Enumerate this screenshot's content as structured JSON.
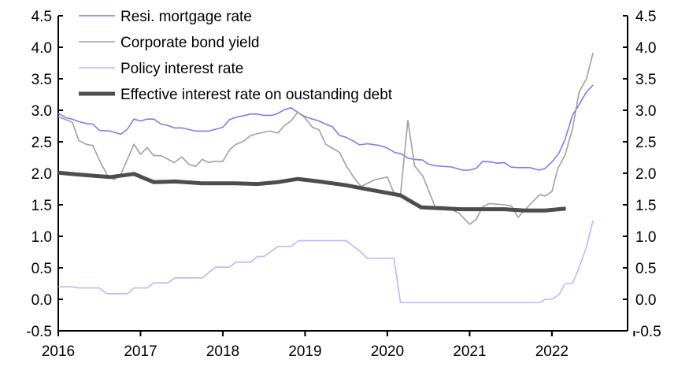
{
  "chart_data": {
    "type": "line",
    "title": "",
    "xlabel": "",
    "ylabel": "",
    "xlim": [
      2016,
      2022.92
    ],
    "ylim": [
      -0.5,
      4.5
    ],
    "y_ticks": [
      "-0.5",
      "0.0",
      "0.5",
      "1.0",
      "1.5",
      "2.0",
      "2.5",
      "3.0",
      "3.5",
      "4.0",
      "4.5"
    ],
    "y_tick_values": [
      -0.5,
      0,
      0.5,
      1,
      1.5,
      2,
      2.5,
      3,
      3.5,
      4,
      4.5
    ],
    "x_ticks": [
      "2016",
      "2017",
      "2018",
      "2019",
      "2020",
      "2021",
      "2022"
    ],
    "x_tick_values": [
      2016,
      2017,
      2018,
      2019,
      2020,
      2021,
      2022
    ],
    "grid": false,
    "legend_position": "top-left",
    "series": [
      {
        "name": "Resi. mortgage rate",
        "color": "#7b7bf5",
        "width": 1.6,
        "x": [
          2016.0,
          2016.1,
          2016.17,
          2016.25,
          2016.34,
          2016.42,
          2016.5,
          2016.63,
          2016.76,
          2016.84,
          2016.92,
          2017.0,
          2017.08,
          2017.16,
          2017.25,
          2017.33,
          2017.41,
          2017.5,
          2017.67,
          2017.83,
          2018.0,
          2018.08,
          2018.16,
          2018.24,
          2018.34,
          2018.42,
          2018.5,
          2018.6,
          2018.67,
          2018.75,
          2018.83,
          2018.91,
          2019.0,
          2019.09,
          2019.17,
          2019.25,
          2019.33,
          2019.42,
          2019.5,
          2019.59,
          2019.66,
          2019.76,
          2019.91,
          2020.0,
          2020.09,
          2020.17,
          2020.25,
          2020.33,
          2020.43,
          2020.49,
          2020.58,
          2020.78,
          2020.91,
          2021.0,
          2021.08,
          2021.16,
          2021.25,
          2021.34,
          2021.42,
          2021.5,
          2021.58,
          2021.73,
          2021.85,
          2021.92,
          2022.0,
          2022.09,
          2022.16,
          2022.25,
          2022.33,
          2022.42,
          2022.5
        ],
        "y": [
          2.95,
          2.88,
          2.86,
          2.82,
          2.79,
          2.78,
          2.68,
          2.67,
          2.62,
          2.7,
          2.86,
          2.83,
          2.86,
          2.86,
          2.78,
          2.76,
          2.72,
          2.72,
          2.67,
          2.67,
          2.73,
          2.85,
          2.89,
          2.91,
          2.94,
          2.94,
          2.92,
          2.92,
          2.95,
          3.01,
          3.04,
          2.97,
          2.9,
          2.86,
          2.83,
          2.78,
          2.74,
          2.6,
          2.57,
          2.51,
          2.45,
          2.47,
          2.44,
          2.4,
          2.33,
          2.31,
          2.24,
          2.22,
          2.21,
          2.15,
          2.12,
          2.1,
          2.05,
          2.05,
          2.08,
          2.19,
          2.18,
          2.16,
          2.17,
          2.1,
          2.09,
          2.09,
          2.05,
          2.08,
          2.18,
          2.33,
          2.54,
          2.92,
          3.09,
          3.29,
          3.4
        ]
      },
      {
        "name": "Corporate bond yield",
        "color": "#a0a0a0",
        "width": 1.6,
        "x": [
          2016.0,
          2016.17,
          2016.25,
          2016.34,
          2016.42,
          2016.5,
          2016.6,
          2016.68,
          2016.76,
          2016.92,
          2017.0,
          2017.08,
          2017.16,
          2017.25,
          2017.41,
          2017.5,
          2017.59,
          2017.67,
          2017.75,
          2017.83,
          2017.9,
          2018.0,
          2018.08,
          2018.16,
          2018.24,
          2018.34,
          2018.42,
          2018.57,
          2018.67,
          2018.75,
          2018.83,
          2018.91,
          2019.0,
          2019.09,
          2019.17,
          2019.25,
          2019.33,
          2019.42,
          2019.5,
          2019.6,
          2019.68,
          2019.85,
          2020.0,
          2020.08,
          2020.16,
          2020.25,
          2020.33,
          2020.43,
          2020.58,
          2020.7,
          2020.87,
          2021.0,
          2021.08,
          2021.16,
          2021.24,
          2021.42,
          2021.51,
          2021.59,
          2021.73,
          2021.85,
          2021.92,
          2022.0,
          2022.07,
          2022.16,
          2022.25,
          2022.33,
          2022.42,
          2022.5
        ],
        "y": [
          2.9,
          2.81,
          2.52,
          2.46,
          2.44,
          2.21,
          1.96,
          1.9,
          1.98,
          2.46,
          2.3,
          2.41,
          2.28,
          2.28,
          2.17,
          2.26,
          2.14,
          2.11,
          2.22,
          2.17,
          2.19,
          2.19,
          2.37,
          2.46,
          2.5,
          2.6,
          2.63,
          2.67,
          2.64,
          2.76,
          2.83,
          2.97,
          2.88,
          2.73,
          2.69,
          2.46,
          2.4,
          2.33,
          2.12,
          1.92,
          1.79,
          1.9,
          1.94,
          1.69,
          1.66,
          2.84,
          2.12,
          1.96,
          1.47,
          1.47,
          1.37,
          1.19,
          1.27,
          1.47,
          1.52,
          1.5,
          1.48,
          1.3,
          1.5,
          1.66,
          1.64,
          1.71,
          2.07,
          2.29,
          2.7,
          3.29,
          3.5,
          3.91
        ]
      },
      {
        "name": "Policy interest rate",
        "color": "#b8b8ff",
        "width": 1.6,
        "x": [
          2016.0,
          2016.16,
          2016.25,
          2016.5,
          2016.59,
          2016.84,
          2016.92,
          2017.08,
          2017.16,
          2017.33,
          2017.42,
          2017.75,
          2017.91,
          2018.08,
          2018.16,
          2018.34,
          2018.42,
          2018.5,
          2018.67,
          2018.83,
          2018.92,
          2019.5,
          2019.66,
          2019.76,
          2020.08,
          2020.16,
          2021.85,
          2021.92,
          2022.0,
          2022.09,
          2022.16,
          2022.25,
          2022.33,
          2022.42,
          2022.5
        ],
        "y": [
          0.2,
          0.2,
          0.18,
          0.18,
          0.09,
          0.09,
          0.18,
          0.18,
          0.26,
          0.26,
          0.34,
          0.34,
          0.51,
          0.51,
          0.59,
          0.59,
          0.68,
          0.68,
          0.84,
          0.84,
          0.93,
          0.93,
          0.77,
          0.65,
          0.65,
          -0.05,
          -0.05,
          0.0,
          0.0,
          0.08,
          0.25,
          0.25,
          0.5,
          0.83,
          1.25
        ]
      },
      {
        "name": "Effective interest rate on oustanding debt",
        "color": "#4d4d4d",
        "width": 5,
        "x": [
          2016.0,
          2016.25,
          2016.63,
          2016.92,
          2017.16,
          2017.42,
          2017.75,
          2018.16,
          2018.42,
          2018.67,
          2018.91,
          2019.17,
          2019.5,
          2019.66,
          2019.91,
          2020.16,
          2020.41,
          2020.9,
          2021.42,
          2021.67,
          2021.92,
          2022.17
        ],
        "y": [
          2.01,
          1.98,
          1.94,
          1.99,
          1.86,
          1.87,
          1.84,
          1.84,
          1.83,
          1.86,
          1.91,
          1.87,
          1.81,
          1.77,
          1.71,
          1.65,
          1.46,
          1.43,
          1.43,
          1.41,
          1.41,
          1.44
        ]
      }
    ]
  }
}
